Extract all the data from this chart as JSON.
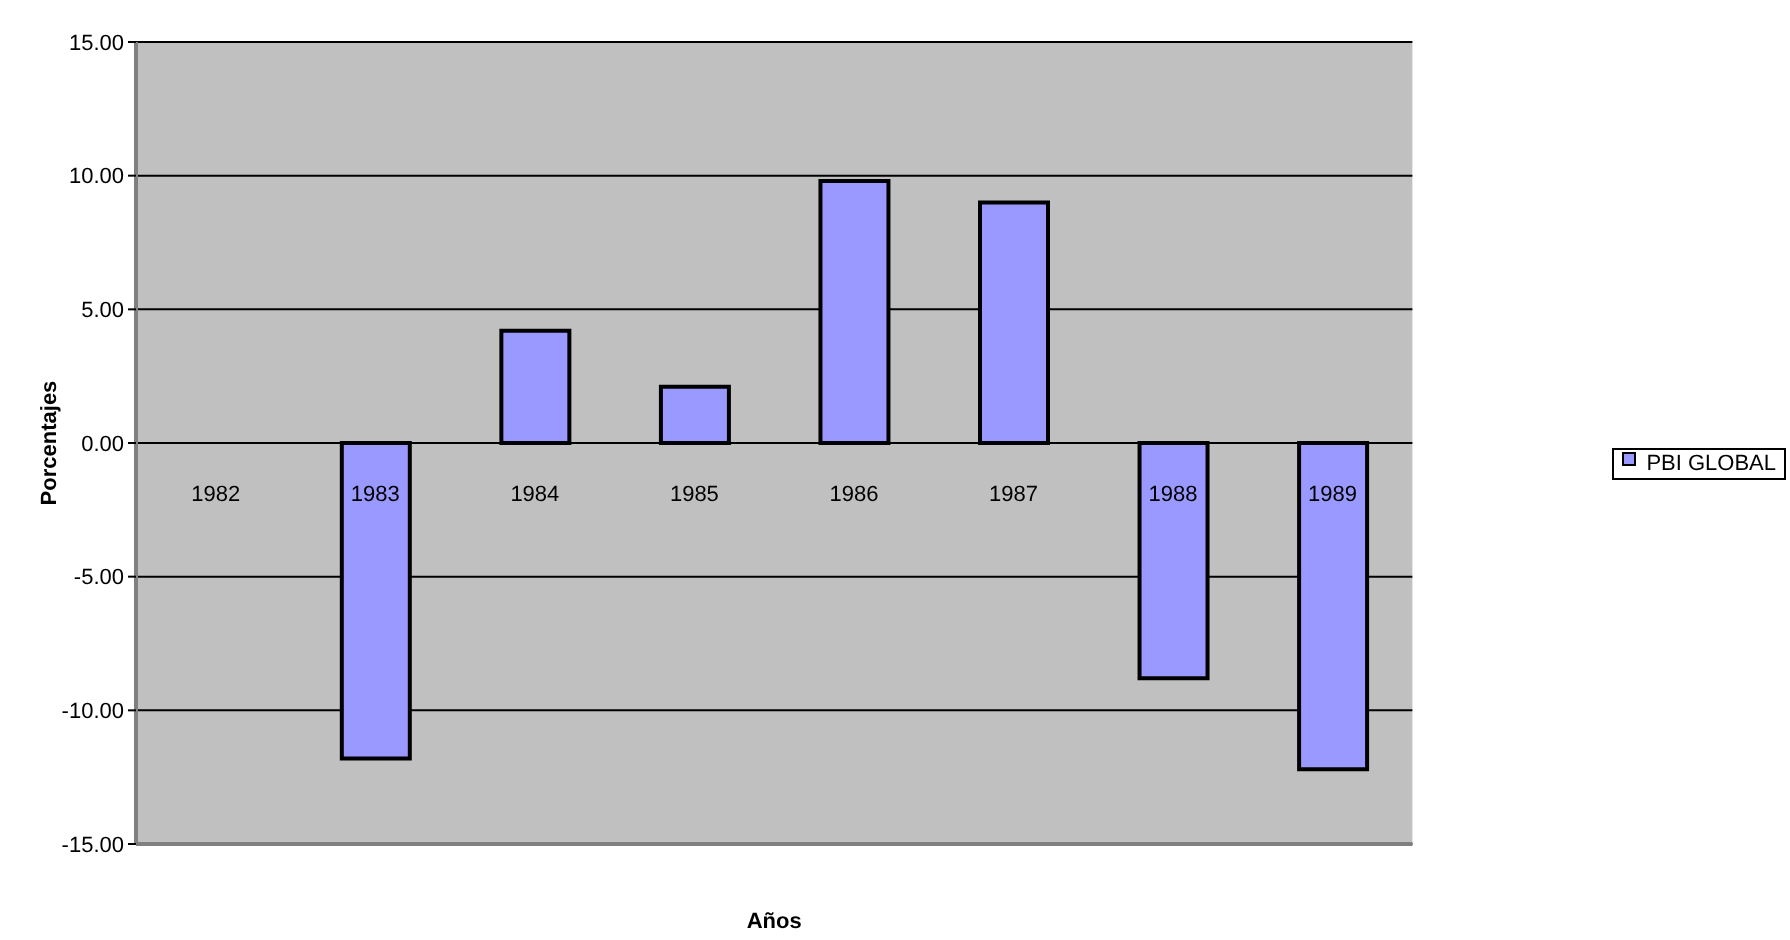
{
  "chart_data": {
    "type": "bar",
    "xlabel": "Años",
    "ylabel": "Porcentajes",
    "categories": [
      "1982",
      "1983",
      "1984",
      "1985",
      "1986",
      "1987",
      "1988",
      "1989"
    ],
    "series": [
      {
        "name": "PBI GLOBAL",
        "color": "#9999ff",
        "values": [
          0,
          -11.8,
          4.2,
          2.1,
          9.8,
          9.0,
          -8.8,
          -12.2
        ]
      }
    ],
    "ylim": [
      -15,
      15
    ],
    "yticks": [
      {
        "value": -15,
        "label": "-15.00"
      },
      {
        "value": -10,
        "label": "-10.00"
      },
      {
        "value": -5,
        "label": "-5.00"
      },
      {
        "value": 0,
        "label": "0.00"
      },
      {
        "value": 5,
        "label": "5.00"
      },
      {
        "value": 10,
        "label": "10.00"
      },
      {
        "value": 15,
        "label": "15.00"
      }
    ],
    "grid": "y",
    "legend": "right"
  }
}
